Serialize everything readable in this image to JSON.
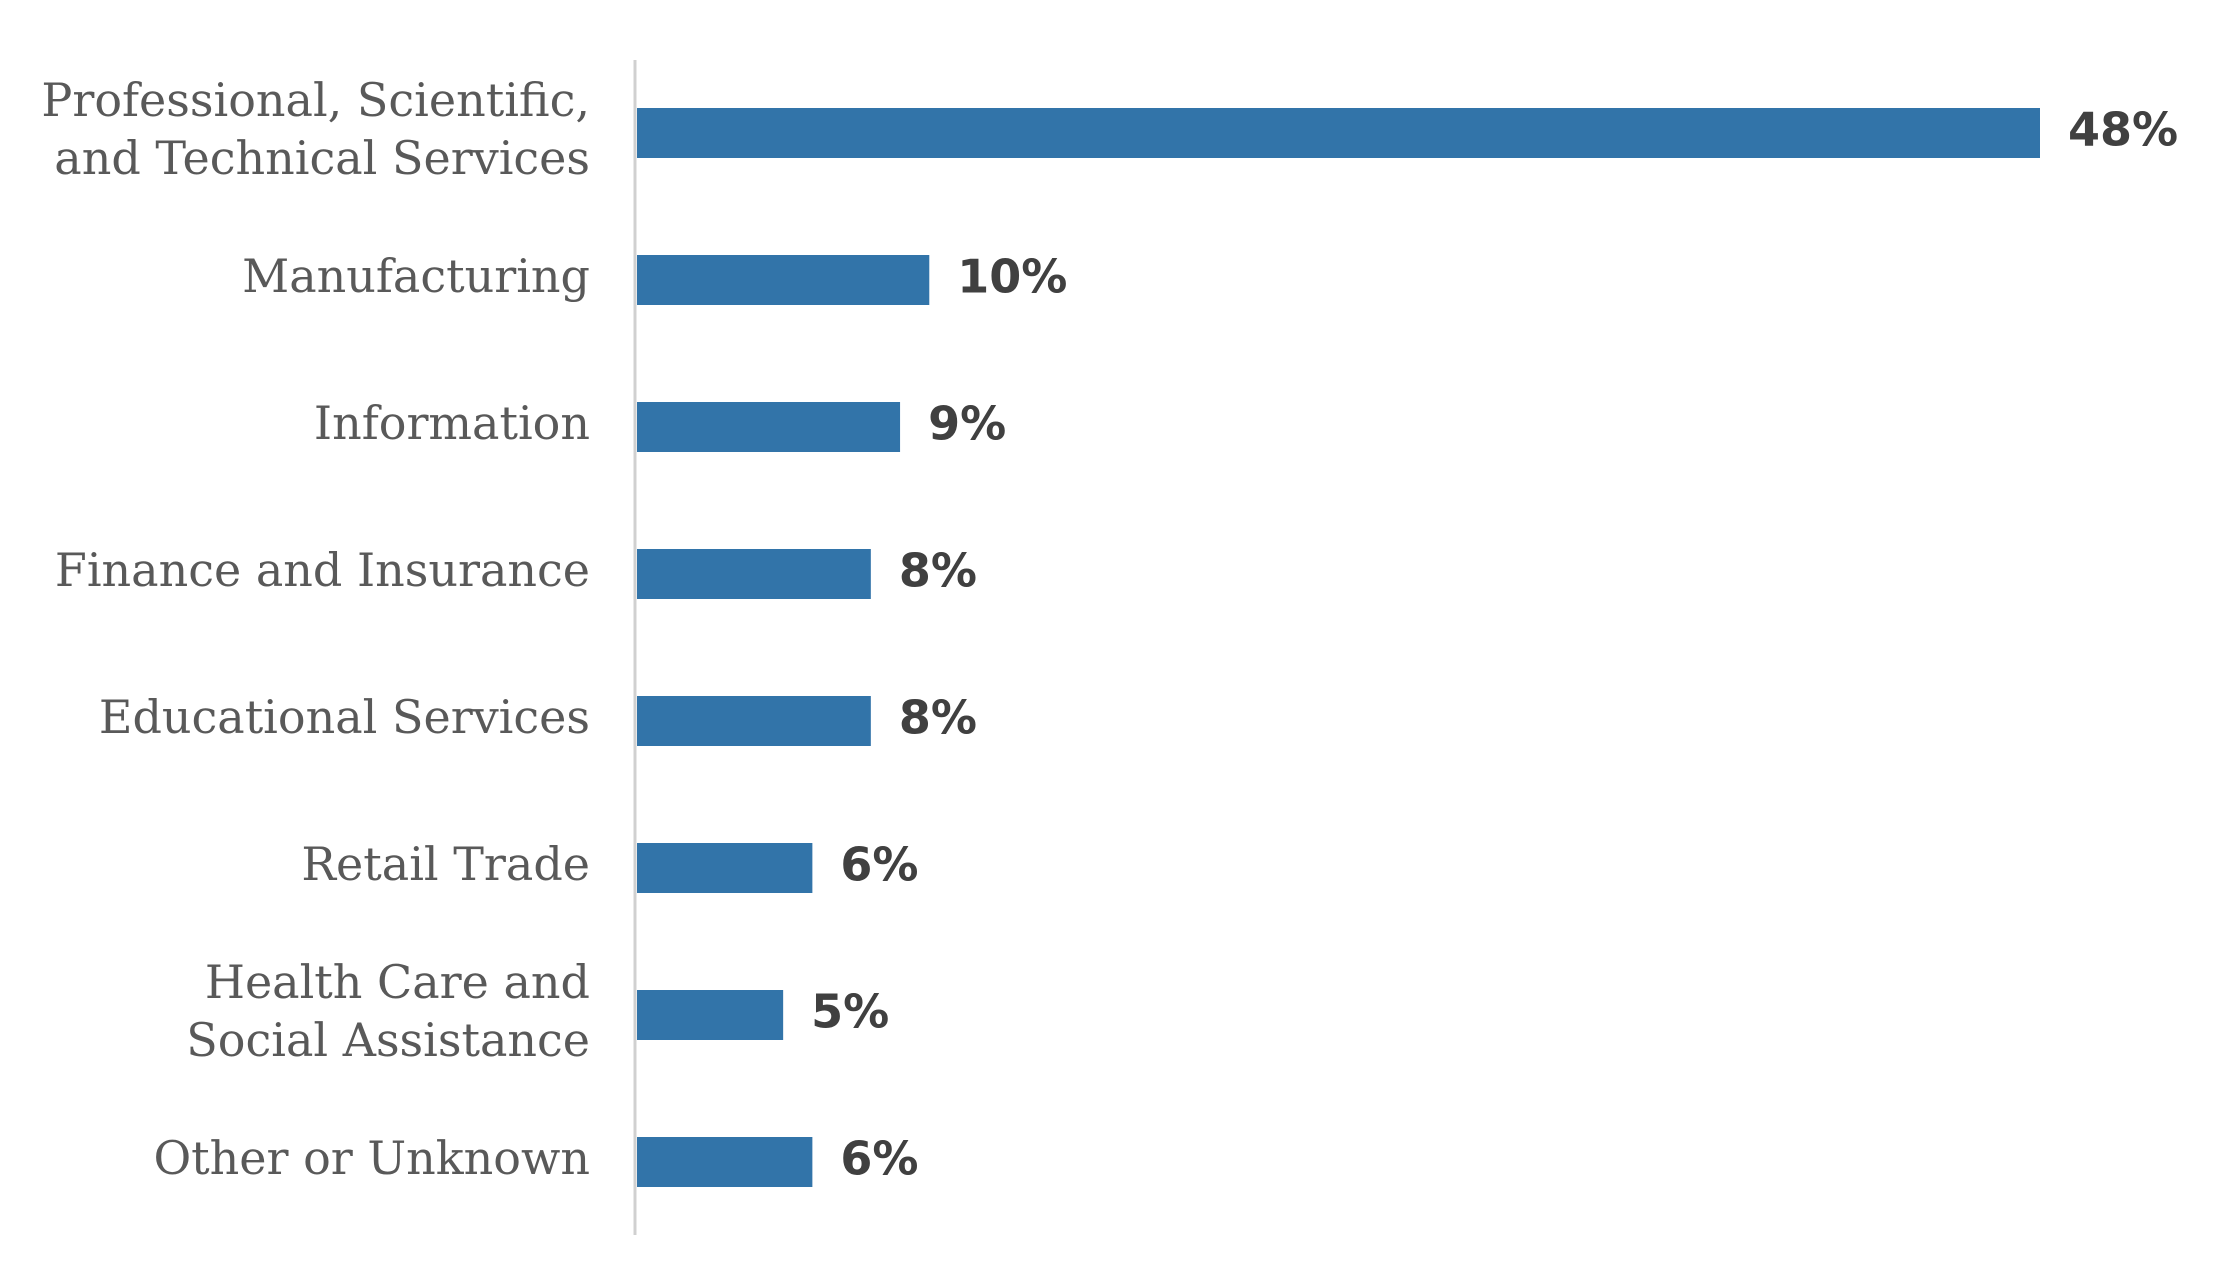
{
  "chart_data": {
    "type": "bar",
    "orientation": "horizontal",
    "categories": [
      [
        "Professional, Scientific,",
        "and Technical Services"
      ],
      [
        "Manufacturing"
      ],
      [
        "Information"
      ],
      [
        "Finance and Insurance"
      ],
      [
        "Educational Services"
      ],
      [
        "Retail Trade"
      ],
      [
        "Health Care and",
        "Social Assistance"
      ],
      [
        "Other or Unknown"
      ]
    ],
    "values": [
      48,
      10,
      9,
      8,
      8,
      6,
      5,
      6
    ],
    "data_labels": [
      "48%",
      "10%",
      "9%",
      "8%",
      "8%",
      "6%",
      "5%",
      "6%"
    ],
    "unit": "%",
    "xlim": [
      0,
      48
    ],
    "grid": false,
    "legend": "none",
    "colors": {
      "bar": "#3274a9",
      "axis": "#d0d0d0",
      "category_text": "#595959",
      "value_text": "#404040"
    }
  }
}
